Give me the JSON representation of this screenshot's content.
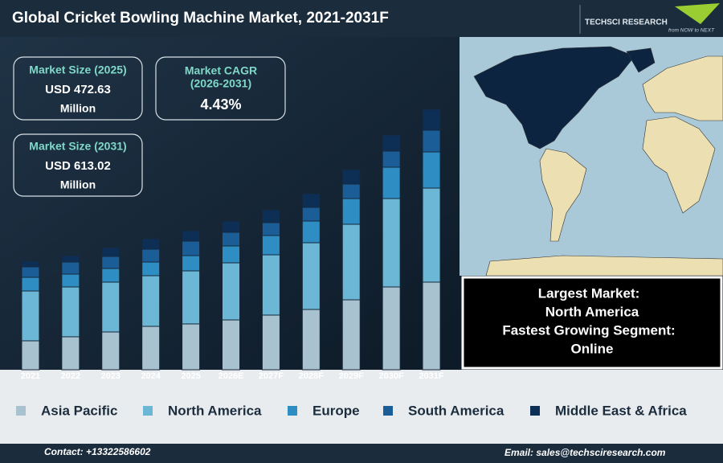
{
  "header": {
    "title": "Global Cricket Bowling Machine Market, 2021-2031F",
    "logo_name": "TECHSCI RESEARCH",
    "logo_tagline": "from NOW to NEXT"
  },
  "cards": [
    {
      "lines": [
        "Market Size (2025)",
        "USD 472.63",
        "Million"
      ]
    },
    {
      "lines": [
        "Market CAGR",
        "(2026-2031)",
        "4.43%"
      ]
    },
    {
      "lines": [
        "Market Size (2031)",
        "USD 613.02",
        "Million"
      ]
    }
  ],
  "highlights": [
    "Largest Market:",
    "North America",
    "Fastest Growing Segment:",
    "Online"
  ],
  "footer": {
    "contact": "Contact: +13322586602",
    "email": "Email: sales@techsciresearch.com"
  },
  "chart_data": {
    "type": "bar",
    "stacked": true,
    "categories": [
      "2021",
      "2022",
      "2023",
      "2024",
      "2025",
      "2026E",
      "2027F",
      "2028F",
      "2029F",
      "2030F",
      "2031F"
    ],
    "ylim": [
      0,
      340
    ],
    "series": [
      {
        "name": "Asia Pacific",
        "color": "#a9c2cf",
        "values": [
          36,
          41,
          47,
          54,
          57,
          62,
          68,
          75,
          87,
          103,
          109
        ]
      },
      {
        "name": "North America",
        "color": "#6cb6d6",
        "values": [
          62,
          62,
          62,
          63,
          66,
          71,
          75,
          83,
          94,
          110,
          117
        ]
      },
      {
        "name": "Europe",
        "color": "#2e8dc2",
        "values": [
          17,
          16,
          17,
          17,
          19,
          21,
          24,
          27,
          32,
          39,
          45
        ]
      },
      {
        "name": "South America",
        "color": "#1b5d97",
        "values": [
          13,
          15,
          15,
          16,
          18,
          17,
          16,
          17,
          18,
          20,
          27
        ]
      },
      {
        "name": "Middle East & Africa",
        "color": "#0d2e55",
        "values": [
          7,
          8,
          11,
          13,
          13,
          14,
          16,
          17,
          18,
          20,
          26
        ]
      }
    ]
  }
}
